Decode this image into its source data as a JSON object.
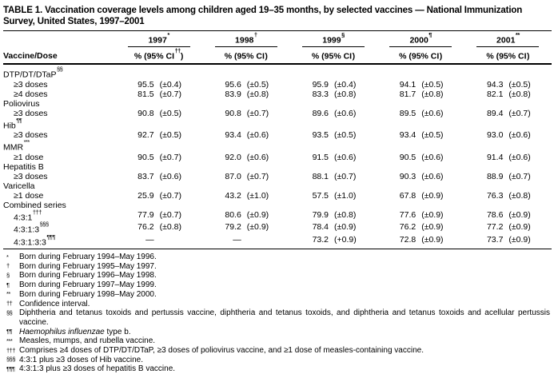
{
  "title": "TABLE 1. Vaccination coverage levels among children aged 19–35 months, by selected vaccines — National Immunization Survey, United States, 1997–2001",
  "header": {
    "row_label": "Vaccine/Dose",
    "columns": [
      {
        "year": "1997",
        "marker": "*",
        "sub_pre": "% (95% CI",
        "sub_sup": "††",
        "sub_post": ")"
      },
      {
        "year": "1998",
        "marker": "†",
        "sub_pre": "% (95% CI",
        "sub_sup": "",
        "sub_post": ")"
      },
      {
        "year": "1999",
        "marker": "§",
        "sub_pre": "% (95% CI",
        "sub_sup": "",
        "sub_post": ")"
      },
      {
        "year": "2000",
        "marker": "¶",
        "sub_pre": "% (95% CI",
        "sub_sup": "",
        "sub_post": ")"
      },
      {
        "year": "2001",
        "marker": "**",
        "sub_pre": "% (95% CI",
        "sub_sup": "",
        "sub_post": ")"
      }
    ]
  },
  "table": {
    "rows": [
      {
        "label": "DTP/DT/DTaP",
        "sup": "§§",
        "indent": false,
        "cells": null
      },
      {
        "label": "≥3 doses",
        "sup": "",
        "indent": true,
        "cells": [
          [
            "95.5",
            "(±0.4)"
          ],
          [
            "95.6",
            "(±0.5)"
          ],
          [
            "95.9",
            "(±0.4)"
          ],
          [
            "94.1",
            "(±0.5)"
          ],
          [
            "94.3",
            "(±0.5)"
          ]
        ]
      },
      {
        "label": "≥4 doses",
        "sup": "",
        "indent": true,
        "cells": [
          [
            "81.5",
            "(±0.7)"
          ],
          [
            "83.9",
            "(±0.8)"
          ],
          [
            "83.3",
            "(±0.8)"
          ],
          [
            "81.7",
            "(±0.8)"
          ],
          [
            "82.1",
            "(±0.8)"
          ]
        ]
      },
      {
        "label": "Poliovirus",
        "sup": "",
        "indent": false,
        "cells": null
      },
      {
        "label": "≥3 doses",
        "sup": "",
        "indent": true,
        "cells": [
          [
            "90.8",
            "(±0.5)"
          ],
          [
            "90.8",
            "(±0.7)"
          ],
          [
            "89.6",
            "(±0.6)"
          ],
          [
            "89.5",
            "(±0.6)"
          ],
          [
            "89.4",
            "(±0.7)"
          ]
        ]
      },
      {
        "label": "Hib",
        "sup": "¶¶",
        "indent": false,
        "cells": null
      },
      {
        "label": "≥3 doses",
        "sup": "",
        "indent": true,
        "cells": [
          [
            "92.7",
            "(±0.5)"
          ],
          [
            "93.4",
            "(±0.6)"
          ],
          [
            "93.5",
            "(±0.5)"
          ],
          [
            "93.4",
            "(±0.5)"
          ],
          [
            "93.0",
            "(±0.6)"
          ]
        ]
      },
      {
        "label": "MMR",
        "sup": "***",
        "indent": false,
        "cells": null
      },
      {
        "label": "≥1 dose",
        "sup": "",
        "indent": true,
        "cells": [
          [
            "90.5",
            "(±0.7)"
          ],
          [
            "92.0",
            "(±0.6)"
          ],
          [
            "91.5",
            "(±0.6)"
          ],
          [
            "90.5",
            "(±0.6)"
          ],
          [
            "91.4",
            "(±0.6)"
          ]
        ]
      },
      {
        "label": "Hepatitis B",
        "sup": "",
        "indent": false,
        "cells": null
      },
      {
        "label": "≥3 doses",
        "sup": "",
        "indent": true,
        "cells": [
          [
            "83.7",
            "(±0.6)"
          ],
          [
            "87.0",
            "(±0.7)"
          ],
          [
            "88.1",
            "(±0.7)"
          ],
          [
            "90.3",
            "(±0.6)"
          ],
          [
            "88.9",
            "(±0.7)"
          ]
        ]
      },
      {
        "label": "Varicella",
        "sup": "",
        "indent": false,
        "cells": null
      },
      {
        "label": "≥1 dose",
        "sup": "",
        "indent": true,
        "cells": [
          [
            "25.9",
            "(±0.7)"
          ],
          [
            "43.2",
            "(±1.0)"
          ],
          [
            "57.5",
            "(±1.0)"
          ],
          [
            "67.8",
            "(±0.9)"
          ],
          [
            "76.3",
            "(±0.8)"
          ]
        ]
      },
      {
        "label": "Combined series",
        "sup": "",
        "indent": false,
        "cells": null
      },
      {
        "label": "4:3:1",
        "sup": "†††",
        "indent": true,
        "cells": [
          [
            "77.9",
            "(±0.7)"
          ],
          [
            "80.6",
            "(±0.9)"
          ],
          [
            "79.9",
            "(±0.8)"
          ],
          [
            "77.6",
            "(±0.9)"
          ],
          [
            "78.6",
            "(±0.9)"
          ]
        ]
      },
      {
        "label": "4:3:1:3",
        "sup": "§§§",
        "indent": true,
        "cells": [
          [
            "76.2",
            "(±0.8)"
          ],
          [
            "79.2",
            "(±0.9)"
          ],
          [
            "78.4",
            "(±0.9)"
          ],
          [
            "76.2",
            "(±0.9)"
          ],
          [
            "77.2",
            "(±0.9)"
          ]
        ]
      },
      {
        "label": "4:3:1:3:3",
        "sup": "¶¶¶",
        "indent": true,
        "cells": [
          [
            "—",
            ""
          ],
          [
            "—",
            ""
          ],
          [
            "73.2",
            "(+0.9)"
          ],
          [
            "72.8",
            "(±0.9)"
          ],
          [
            "73.7",
            "(±0.9)"
          ]
        ]
      }
    ]
  },
  "footnotes": [
    {
      "marker": "*",
      "text": "Born during February 1994–May 1996."
    },
    {
      "marker": "†",
      "text": "Born during February 1995–May 1997."
    },
    {
      "marker": "§",
      "text": "Born during February 1996–May 1998."
    },
    {
      "marker": "¶",
      "text": "Born during February 1997–May 1999."
    },
    {
      "marker": "**",
      "text": "Born during February 1998–May 2000."
    },
    {
      "marker": "††",
      "text": "Confidence interval."
    },
    {
      "marker": "§§",
      "text": "Diphtheria and tetanus toxoids and pertussis vaccine, diphtheria and tetanus toxoids, and diphtheria and tetanus toxoids and acellular pertussis vaccine."
    },
    {
      "marker": "¶¶",
      "before": "",
      "italic": "Haemophilus influenzae",
      "after": " type b."
    },
    {
      "marker": "***",
      "text": "Measles, mumps, and rubella vaccine."
    },
    {
      "marker": "†††",
      "text": "Comprises ≥4 doses of DTP/DT/DTaP, ≥3 doses of poliovirus vaccine, and ≥1 dose of measles-containing vaccine."
    },
    {
      "marker": "§§§",
      "text": "4:3:1 plus ≥3 doses of Hib vaccine."
    },
    {
      "marker": "¶¶¶",
      "text": "4:3:1:3 plus ≥3 doses of hepatitis B vaccine."
    }
  ]
}
